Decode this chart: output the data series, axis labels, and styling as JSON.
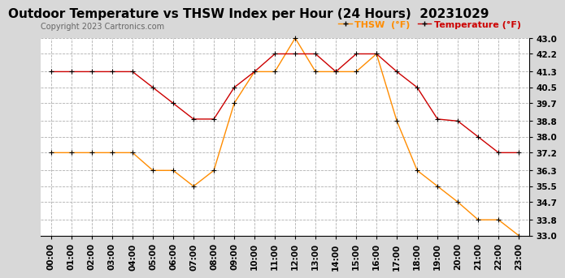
{
  "title": "Outdoor Temperature vs THSW Index per Hour (24 Hours)  20231029",
  "copyright": "Copyright 2023 Cartronics.com",
  "legend_thsw": "THSW  (°F)",
  "legend_temp": "Temperature (°F)",
  "hours": [
    0,
    1,
    2,
    3,
    4,
    5,
    6,
    7,
    8,
    9,
    10,
    11,
    12,
    13,
    14,
    15,
    16,
    17,
    18,
    19,
    20,
    21,
    22,
    23
  ],
  "temperature": [
    41.3,
    41.3,
    41.3,
    41.3,
    41.3,
    40.5,
    39.7,
    38.9,
    38.9,
    40.5,
    41.3,
    42.2,
    42.2,
    42.2,
    41.3,
    42.2,
    42.2,
    41.3,
    40.5,
    38.9,
    38.8,
    38.0,
    37.2,
    37.2
  ],
  "thsw": [
    37.2,
    37.2,
    37.2,
    37.2,
    37.2,
    36.3,
    36.3,
    35.5,
    36.3,
    39.7,
    41.3,
    41.3,
    43.0,
    41.3,
    41.3,
    41.3,
    42.2,
    38.8,
    36.3,
    35.5,
    34.7,
    33.8,
    33.8,
    33.0
  ],
  "temp_color": "#cc0000",
  "thsw_color": "#ff8c00",
  "bg_color": "#d8d8d8",
  "plot_bg_color": "#ffffff",
  "grid_color": "#b0b0b0",
  "ylim": [
    33.0,
    43.0
  ],
  "yticks": [
    33.0,
    33.8,
    34.7,
    35.5,
    36.3,
    37.2,
    38.0,
    38.8,
    39.7,
    40.5,
    41.3,
    42.2,
    43.0
  ],
  "title_fontsize": 11,
  "copyright_fontsize": 7,
  "legend_fontsize": 8,
  "tick_fontsize": 7.5,
  "marker": "+",
  "marker_size": 5,
  "marker_color": "black",
  "line_width": 1.0
}
